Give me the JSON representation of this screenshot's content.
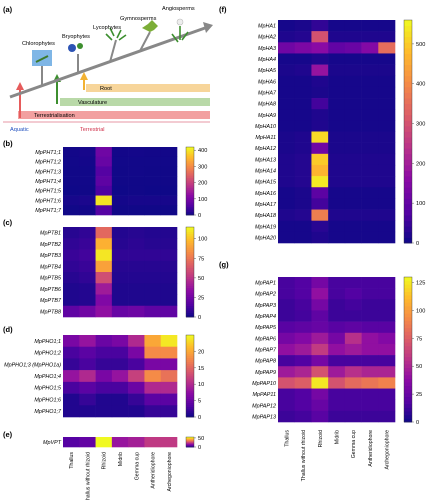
{
  "panels": {
    "a": "(a)",
    "b": "(b)",
    "c": "(c)",
    "d": "(d)",
    "e": "(e)",
    "f": "(f)",
    "g": "(g)"
  },
  "evolution": {
    "groups": [
      "Chlorophytes",
      "Bryophytes",
      "Lycophytes",
      "Gymnosperms",
      "Angiosperms"
    ],
    "traits": [
      "Root",
      "Vasculature",
      "Terrestrialisation"
    ],
    "habitats": [
      "Aquatic",
      "Terrestrial"
    ],
    "colors": {
      "aquatic": "#1f4fbf",
      "terrestrial": "#d0304a",
      "root": "#f2b233",
      "vasculature": "#3d8f2f",
      "terrestrialisation": "#e65b5b"
    }
  },
  "tissues": [
    "Thallus",
    "Thallus without rhizoid",
    "Rhizoid",
    "Midrib",
    "Gemma cup",
    "Antheridiophore",
    "Archegoniophore"
  ],
  "colormap": "plasma",
  "chart_data": [
    {
      "id": "b",
      "type": "heatmap",
      "rows": [
        "MpPHT1;1",
        "MpPHT1;2",
        "MpPHT1;3",
        "MpPHT1;4",
        "MpPHT1;5",
        "MpPHT1;6",
        "MpPHT1;7"
      ],
      "values": [
        [
          5,
          8,
          90,
          5,
          6,
          5,
          5
        ],
        [
          4,
          6,
          80,
          4,
          4,
          4,
          4
        ],
        [
          3,
          4,
          60,
          3,
          4,
          3,
          3
        ],
        [
          3,
          4,
          70,
          3,
          3,
          3,
          3
        ],
        [
          2,
          3,
          55,
          2,
          3,
          2,
          2
        ],
        [
          8,
          12,
          400,
          6,
          8,
          8,
          8
        ],
        [
          3,
          5,
          60,
          3,
          3,
          3,
          3
        ]
      ],
      "colorbar": {
        "min": 0,
        "max": 420,
        "ticks": [
          0,
          100,
          200,
          300,
          400
        ]
      }
    },
    {
      "id": "c",
      "type": "heatmap",
      "rows": [
        "MpPTB1",
        "MpPTB2",
        "MpPTB3",
        "MpPTB4",
        "MpPTB5",
        "MpPTB6",
        "MpPTB7",
        "MpPTB8"
      ],
      "values": [
        [
          6,
          8,
          70,
          5,
          6,
          5,
          5
        ],
        [
          8,
          10,
          95,
          6,
          7,
          6,
          6
        ],
        [
          10,
          12,
          110,
          8,
          8,
          8,
          8
        ],
        [
          8,
          10,
          90,
          6,
          6,
          6,
          6
        ],
        [
          6,
          8,
          60,
          5,
          5,
          5,
          5
        ],
        [
          4,
          5,
          40,
          4,
          4,
          4,
          4
        ],
        [
          4,
          5,
          30,
          4,
          4,
          4,
          4
        ],
        [
          20,
          25,
          35,
          22,
          24,
          20,
          20
        ]
      ],
      "colorbar": {
        "min": 0,
        "max": 115,
        "ticks": [
          0,
          25,
          50,
          75,
          100
        ]
      }
    },
    {
      "id": "d",
      "type": "heatmap",
      "rows": [
        "MpPHO1;1",
        "MpPHO1;2",
        "MpPHO1;3 (MpPHO1a)",
        "MpPHO1;4",
        "MpPHO1;5",
        "MpPHO1;6",
        "MpPHO1;7"
      ],
      "values": [
        [
          6,
          8,
          5,
          6,
          10,
          20,
          24
        ],
        [
          3,
          4,
          3,
          3,
          6,
          18,
          18
        ],
        [
          2,
          3,
          2,
          2,
          3,
          6,
          6
        ],
        [
          8,
          10,
          6,
          8,
          12,
          18,
          16
        ],
        [
          3,
          4,
          3,
          3,
          5,
          10,
          10
        ],
        [
          1,
          2,
          1,
          1,
          2,
          4,
          4
        ],
        [
          1,
          1,
          1,
          1,
          1,
          2,
          2
        ]
      ],
      "colorbar": {
        "min": 0,
        "max": 25,
        "ticks": [
          0,
          5,
          10,
          15,
          20
        ]
      }
    },
    {
      "id": "e",
      "type": "heatmap",
      "rows": [
        "MpVPT"
      ],
      "values": [
        [
          8,
          10,
          55,
          18,
          20,
          25,
          25
        ]
      ],
      "colorbar": {
        "min": 0,
        "max": 55,
        "ticks": [
          0,
          50
        ]
      }
    },
    {
      "id": "f",
      "type": "heatmap",
      "rows": [
        "MpHA1",
        "MpHA2",
        "MpHA3",
        "MpHA4",
        "MpHA5",
        "MpHA6",
        "MpHA7",
        "MpHA8",
        "MpHA9",
        "MpHA10",
        "MpHA11",
        "MpHA12",
        "MpHA13",
        "MpHA14",
        "MpHA15",
        "MpHA16",
        "MpHA17",
        "MpHA18",
        "MpHA19",
        "MpHA20"
      ],
      "values": [
        [
          10,
          15,
          40,
          10,
          10,
          10,
          10
        ],
        [
          20,
          25,
          300,
          20,
          20,
          20,
          20
        ],
        [
          120,
          140,
          160,
          100,
          110,
          150,
          350
        ],
        [
          10,
          10,
          20,
          10,
          10,
          10,
          10
        ],
        [
          15,
          20,
          180,
          15,
          15,
          15,
          15
        ],
        [
          10,
          10,
          20,
          10,
          10,
          10,
          10
        ],
        [
          10,
          10,
          15,
          10,
          10,
          10,
          10
        ],
        [
          10,
          10,
          60,
          10,
          10,
          10,
          10
        ],
        [
          10,
          10,
          20,
          10,
          10,
          10,
          10
        ],
        [
          10,
          10,
          20,
          10,
          10,
          10,
          10
        ],
        [
          15,
          20,
          520,
          15,
          15,
          15,
          15
        ],
        [
          15,
          20,
          120,
          15,
          15,
          15,
          15
        ],
        [
          20,
          25,
          500,
          20,
          20,
          20,
          20
        ],
        [
          20,
          25,
          470,
          20,
          20,
          20,
          20
        ],
        [
          20,
          25,
          540,
          20,
          20,
          20,
          20
        ],
        [
          10,
          15,
          90,
          10,
          10,
          10,
          10
        ],
        [
          10,
          15,
          60,
          10,
          10,
          10,
          10
        ],
        [
          20,
          25,
          380,
          20,
          20,
          20,
          20
        ],
        [
          10,
          10,
          30,
          10,
          10,
          10,
          10
        ],
        [
          10,
          10,
          20,
          10,
          10,
          10,
          10
        ]
      ],
      "colorbar": {
        "min": 0,
        "max": 560,
        "ticks": [
          0,
          100,
          200,
          300,
          400,
          500
        ]
      }
    },
    {
      "id": "g",
      "type": "heatmap",
      "rows": [
        "MpPAP1",
        "MpPAP2",
        "MpPAP3",
        "MpPAP4",
        "MpPAP5",
        "MpPAP6",
        "MpPAP7",
        "MpPAP8",
        "MpPAP9",
        "MpPAP10",
        "MpPAP11",
        "MpPAP12",
        "MpPAP13"
      ],
      "values": [
        [
          15,
          18,
          30,
          15,
          15,
          15,
          15
        ],
        [
          15,
          18,
          40,
          15,
          18,
          15,
          15
        ],
        [
          12,
          15,
          30,
          12,
          14,
          12,
          12
        ],
        [
          12,
          14,
          22,
          12,
          12,
          12,
          12
        ],
        [
          20,
          22,
          25,
          20,
          22,
          20,
          20
        ],
        [
          30,
          35,
          45,
          30,
          55,
          40,
          35
        ],
        [
          40,
          45,
          60,
          40,
          45,
          40,
          40
        ],
        [
          15,
          18,
          30,
          15,
          15,
          15,
          15
        ],
        [
          45,
          50,
          70,
          45,
          55,
          50,
          50
        ],
        [
          70,
          75,
          125,
          70,
          80,
          85,
          90
        ],
        [
          15,
          18,
          30,
          15,
          15,
          15,
          15
        ],
        [
          15,
          18,
          25,
          15,
          15,
          15,
          15
        ],
        [
          12,
          14,
          20,
          12,
          12,
          12,
          12
        ]
      ],
      "colorbar": {
        "min": 0,
        "max": 130,
        "ticks": [
          0,
          25,
          50,
          75,
          100,
          125
        ]
      }
    }
  ]
}
